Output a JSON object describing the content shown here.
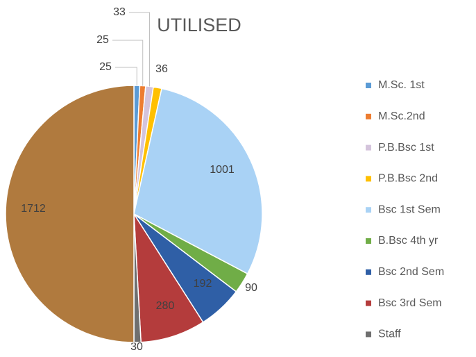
{
  "chart_data": {
    "type": "pie",
    "title": "UTILISED",
    "categories": [
      "M.Sc. 1st",
      "M.Sc.2nd",
      "P.B.Bsc 1st",
      "P.B.Bsc 2nd",
      "Bsc 1st Sem",
      "B.Bsc 4th yr",
      "Bsc 2nd  Sem",
      "Bsc 3rd Sem",
      "Staff",
      null
    ],
    "values": [
      25,
      25,
      33,
      36,
      1001,
      90,
      192,
      280,
      30,
      1712
    ],
    "colors": [
      "#5b9bd5",
      "#ed7d31",
      "#d4c4dc",
      "#ffc000",
      "#a9d2f5",
      "#70ad47",
      "#2f5fa6",
      "#b43c3c",
      "#6f6f6f",
      "#b07a3e"
    ],
    "legend": "right"
  }
}
